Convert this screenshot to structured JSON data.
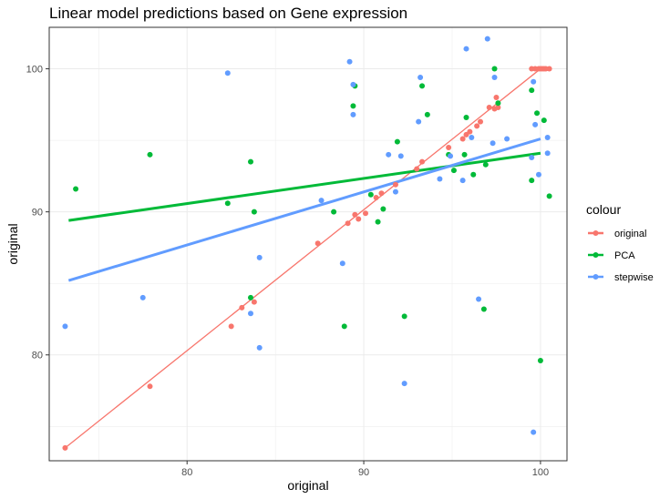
{
  "chart_data": {
    "type": "scatter",
    "title": "Linear model predictions based on Gene expression",
    "xlabel": "original",
    "ylabel": "original",
    "xlim": [
      72.2,
      101.5
    ],
    "ylim": [
      72.6,
      102.9
    ],
    "x_ticks": [
      80,
      90,
      100
    ],
    "y_ticks": [
      80,
      90,
      100
    ],
    "grid": true,
    "legend": {
      "title": "colour",
      "position": "right"
    },
    "series": [
      {
        "name": "original",
        "color": "#F8766D",
        "points": [
          [
            73.1,
            73.5
          ],
          [
            77.9,
            77.8
          ],
          [
            82.5,
            82.0
          ],
          [
            83.1,
            83.3
          ],
          [
            83.8,
            83.7
          ],
          [
            87.4,
            87.8
          ],
          [
            89.1,
            89.2
          ],
          [
            89.5,
            89.8
          ],
          [
            89.7,
            89.5
          ],
          [
            90.1,
            89.9
          ],
          [
            90.7,
            91.0
          ],
          [
            91.0,
            91.3
          ],
          [
            91.8,
            91.9
          ],
          [
            93.0,
            93.0
          ],
          [
            93.3,
            93.5
          ],
          [
            94.8,
            94.5
          ],
          [
            95.6,
            95.1
          ],
          [
            95.8,
            95.4
          ],
          [
            96.0,
            95.6
          ],
          [
            96.4,
            96.0
          ],
          [
            96.6,
            96.3
          ],
          [
            97.1,
            97.3
          ],
          [
            97.4,
            97.2
          ],
          [
            97.6,
            97.3
          ],
          [
            97.5,
            98.0
          ],
          [
            99.5,
            100.0
          ],
          [
            99.7,
            100.0
          ],
          [
            99.9,
            100.0
          ],
          [
            100.0,
            100.0
          ],
          [
            100.1,
            100.0
          ],
          [
            100.2,
            100.0
          ],
          [
            100.3,
            100.0
          ],
          [
            100.5,
            100.0
          ]
        ],
        "fit": [
          [
            73.1,
            73.5
          ],
          [
            100.0,
            100.0
          ]
        ]
      },
      {
        "name": "PCA",
        "color": "#00BA38",
        "points": [
          [
            73.7,
            91.6
          ],
          [
            77.9,
            94.0
          ],
          [
            82.3,
            90.6
          ],
          [
            83.6,
            93.5
          ],
          [
            83.6,
            84.0
          ],
          [
            83.8,
            90.0
          ],
          [
            88.3,
            90.0
          ],
          [
            88.9,
            82.0
          ],
          [
            89.4,
            97.4
          ],
          [
            89.5,
            98.8
          ],
          [
            90.4,
            91.2
          ],
          [
            90.8,
            89.3
          ],
          [
            91.1,
            90.2
          ],
          [
            91.9,
            94.9
          ],
          [
            92.3,
            82.7
          ],
          [
            93.3,
            98.8
          ],
          [
            93.6,
            96.8
          ],
          [
            94.8,
            94.0
          ],
          [
            95.1,
            92.9
          ],
          [
            95.7,
            94.0
          ],
          [
            95.8,
            96.6
          ],
          [
            96.2,
            92.6
          ],
          [
            96.8,
            83.2
          ],
          [
            96.9,
            93.3
          ],
          [
            97.4,
            100.0
          ],
          [
            97.6,
            97.6
          ],
          [
            99.5,
            92.2
          ],
          [
            99.5,
            98.5
          ],
          [
            99.8,
            96.9
          ],
          [
            100.0,
            79.6
          ],
          [
            100.2,
            96.4
          ],
          [
            100.5,
            91.1
          ]
        ],
        "fit": [
          [
            73.3,
            89.4
          ],
          [
            100.0,
            94.1
          ]
        ]
      },
      {
        "name": "stepwise",
        "color": "#619CFF",
        "points": [
          [
            73.1,
            82.0
          ],
          [
            77.5,
            84.0
          ],
          [
            82.3,
            99.7
          ],
          [
            83.6,
            82.9
          ],
          [
            84.1,
            86.8
          ],
          [
            84.1,
            80.5
          ],
          [
            87.6,
            90.8
          ],
          [
            88.8,
            86.4
          ],
          [
            89.2,
            100.5
          ],
          [
            89.4,
            98.9
          ],
          [
            89.4,
            96.8
          ],
          [
            91.4,
            94.0
          ],
          [
            91.8,
            91.4
          ],
          [
            92.1,
            93.9
          ],
          [
            92.3,
            78.0
          ],
          [
            93.1,
            96.3
          ],
          [
            93.2,
            99.4
          ],
          [
            94.3,
            92.3
          ],
          [
            94.9,
            93.9
          ],
          [
            95.6,
            92.2
          ],
          [
            95.8,
            101.4
          ],
          [
            96.1,
            95.2
          ],
          [
            96.5,
            83.9
          ],
          [
            97.0,
            102.1
          ],
          [
            97.3,
            94.8
          ],
          [
            97.4,
            99.4
          ],
          [
            98.1,
            95.1
          ],
          [
            99.5,
            93.8
          ],
          [
            99.6,
            74.6
          ],
          [
            99.6,
            99.1
          ],
          [
            99.7,
            96.1
          ],
          [
            99.9,
            92.6
          ],
          [
            100.4,
            95.2
          ],
          [
            100.4,
            94.1
          ]
        ],
        "fit": [
          [
            73.3,
            85.2
          ],
          [
            100.0,
            95.1
          ]
        ]
      }
    ]
  }
}
